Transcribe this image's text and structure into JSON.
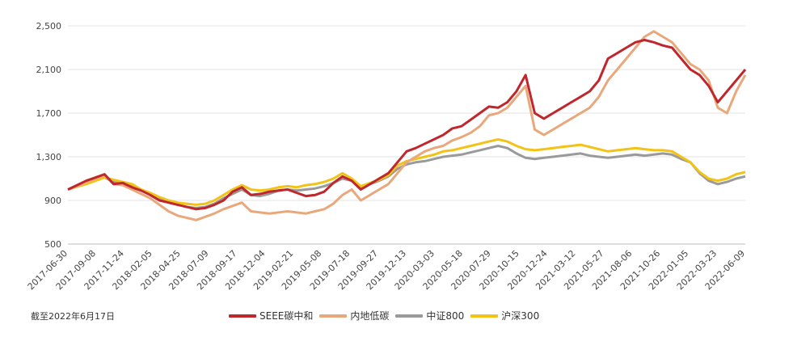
{
  "note": "截至2022年6月17日",
  "chart_data": {
    "type": "line",
    "title": "",
    "xlabel": "",
    "ylabel": "",
    "ylim": [
      500,
      2500
    ],
    "y_ticks": [
      "500",
      "900",
      "1,300",
      "1,700",
      "2,100",
      "2,500"
    ],
    "y_tick_values": [
      500,
      900,
      1300,
      1700,
      2100,
      2500
    ],
    "x_ticks": [
      "2017-06-30",
      "2017-09-08",
      "2017-11-24",
      "2018-02-05",
      "2018-04-25",
      "2018-07-09",
      "2018-09-17",
      "2018-12-04",
      "2019-02-21",
      "2019-05-08",
      "2019-07-18",
      "2019-09-27",
      "2019-12-13",
      "2020-03-03",
      "2020-05-18",
      "2020-07-29",
      "2020-10-15",
      "2020-12-24",
      "2021-03-12",
      "2021-05-27",
      "2021-08-06",
      "2021-10-26",
      "2022-01-05",
      "2022-03-23",
      "2022-06-09"
    ],
    "grid": "horizontal",
    "legend": "bottom",
    "series": [
      {
        "name": "SEEE碳中和",
        "color": "#c0272d",
        "values": [
          1000,
          1040,
          1080,
          1110,
          1140,
          1050,
          1060,
          1020,
          990,
          950,
          900,
          880,
          860,
          840,
          820,
          830,
          860,
          900,
          980,
          1020,
          950,
          960,
          980,
          990,
          1000,
          970,
          940,
          950,
          980,
          1060,
          1120,
          1080,
          1000,
          1050,
          1100,
          1150,
          1250,
          1350,
          1380,
          1420,
          1460,
          1500,
          1560,
          1580,
          1640,
          1700,
          1760,
          1750,
          1800,
          1900,
          2050,
          1700,
          1650,
          1700,
          1750,
          1800,
          1850,
          1900,
          2000,
          2200,
          2250,
          2300,
          2350,
          2370,
          2350,
          2320,
          2300,
          2200,
          2100,
          2050,
          1950,
          1800,
          1900,
          2000,
          2100
        ]
      },
      {
        "name": "内地低碳",
        "color": "#e8a87c",
        "values": [
          1000,
          1030,
          1070,
          1100,
          1130,
          1050,
          1040,
          1000,
          960,
          920,
          860,
          800,
          760,
          740,
          720,
          750,
          780,
          820,
          850,
          880,
          800,
          790,
          780,
          790,
          800,
          790,
          780,
          800,
          820,
          870,
          950,
          1000,
          900,
          950,
          1000,
          1050,
          1150,
          1250,
          1300,
          1350,
          1380,
          1400,
          1450,
          1480,
          1520,
          1580,
          1680,
          1700,
          1750,
          1850,
          1950,
          1550,
          1500,
          1550,
          1600,
          1650,
          1700,
          1750,
          1850,
          2000,
          2100,
          2200,
          2300,
          2400,
          2450,
          2400,
          2350,
          2250,
          2150,
          2100,
          2000,
          1750,
          1700,
          1900,
          2050
        ]
      },
      {
        "name": "中证800",
        "color": "#9a9a9a",
        "values": [
          1000,
          1030,
          1060,
          1090,
          1110,
          1070,
          1060,
          1040,
          990,
          960,
          910,
          880,
          860,
          840,
          830,
          840,
          870,
          920,
          960,
          1000,
          950,
          940,
          960,
          990,
          1000,
          990,
          1000,
          1010,
          1030,
          1060,
          1100,
          1080,
          1020,
          1050,
          1080,
          1120,
          1190,
          1230,
          1250,
          1260,
          1280,
          1300,
          1310,
          1320,
          1340,
          1360,
          1380,
          1400,
          1380,
          1330,
          1290,
          1280,
          1290,
          1300,
          1310,
          1320,
          1330,
          1310,
          1300,
          1290,
          1300,
          1310,
          1320,
          1310,
          1320,
          1330,
          1320,
          1280,
          1250,
          1150,
          1080,
          1050,
          1070,
          1100,
          1120
        ]
      },
      {
        "name": "沪深300",
        "color": "#f2c316",
        "values": [
          1000,
          1025,
          1050,
          1080,
          1110,
          1090,
          1070,
          1050,
          1000,
          970,
          930,
          900,
          880,
          870,
          860,
          870,
          900,
          950,
          1000,
          1040,
          1000,
          990,
          1000,
          1020,
          1030,
          1020,
          1040,
          1050,
          1070,
          1100,
          1150,
          1100,
          1030,
          1060,
          1090,
          1130,
          1220,
          1260,
          1280,
          1300,
          1320,
          1350,
          1360,
          1380,
          1400,
          1420,
          1440,
          1460,
          1440,
          1400,
          1370,
          1360,
          1370,
          1380,
          1390,
          1400,
          1410,
          1390,
          1370,
          1350,
          1360,
          1370,
          1380,
          1370,
          1360,
          1360,
          1350,
          1300,
          1250,
          1160,
          1100,
          1080,
          1100,
          1140,
          1160
        ]
      }
    ]
  }
}
